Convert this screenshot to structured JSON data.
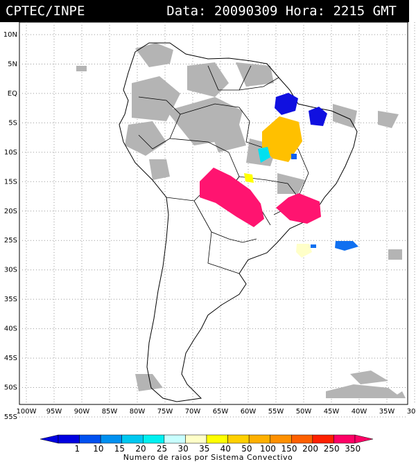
{
  "header": {
    "left_text": "CPTEC/INPE",
    "right_text": "Data: 20090309 Hora: 2215 GMT"
  },
  "map": {
    "lat_labels": [
      "10N",
      "5N",
      "EQ",
      "5S",
      "10S",
      "15S",
      "20S",
      "25S",
      "30S",
      "35S",
      "40S",
      "45S",
      "50S",
      "55S"
    ],
    "lon_labels": [
      "100W",
      "95W",
      "90W",
      "85W",
      "80W",
      "75W",
      "70W",
      "65W",
      "60W",
      "55W",
      "50W",
      "45W",
      "40W",
      "35W",
      "30W"
    ],
    "lat_range": [
      10,
      -55
    ],
    "lon_range": [
      -100,
      -30
    ],
    "grid": true,
    "cloud_color": "#b4b4b4"
  },
  "colorbar": {
    "labels": [
      "1",
      "10",
      "15",
      "20",
      "25",
      "30",
      "35",
      "40",
      "50",
      "100",
      "150",
      "200",
      "250",
      "350"
    ],
    "colors": [
      "#0000e0",
      "#0050f0",
      "#0090f0",
      "#00c8f0",
      "#00f0f0",
      "#c8ffff",
      "#ffffc8",
      "#ffff00",
      "#ffd000",
      "#ffb000",
      "#ff9000",
      "#ff6000",
      "#ff2000",
      "#ff0066"
    ],
    "title": "Numero de raios por Sistema Convectivo"
  }
}
